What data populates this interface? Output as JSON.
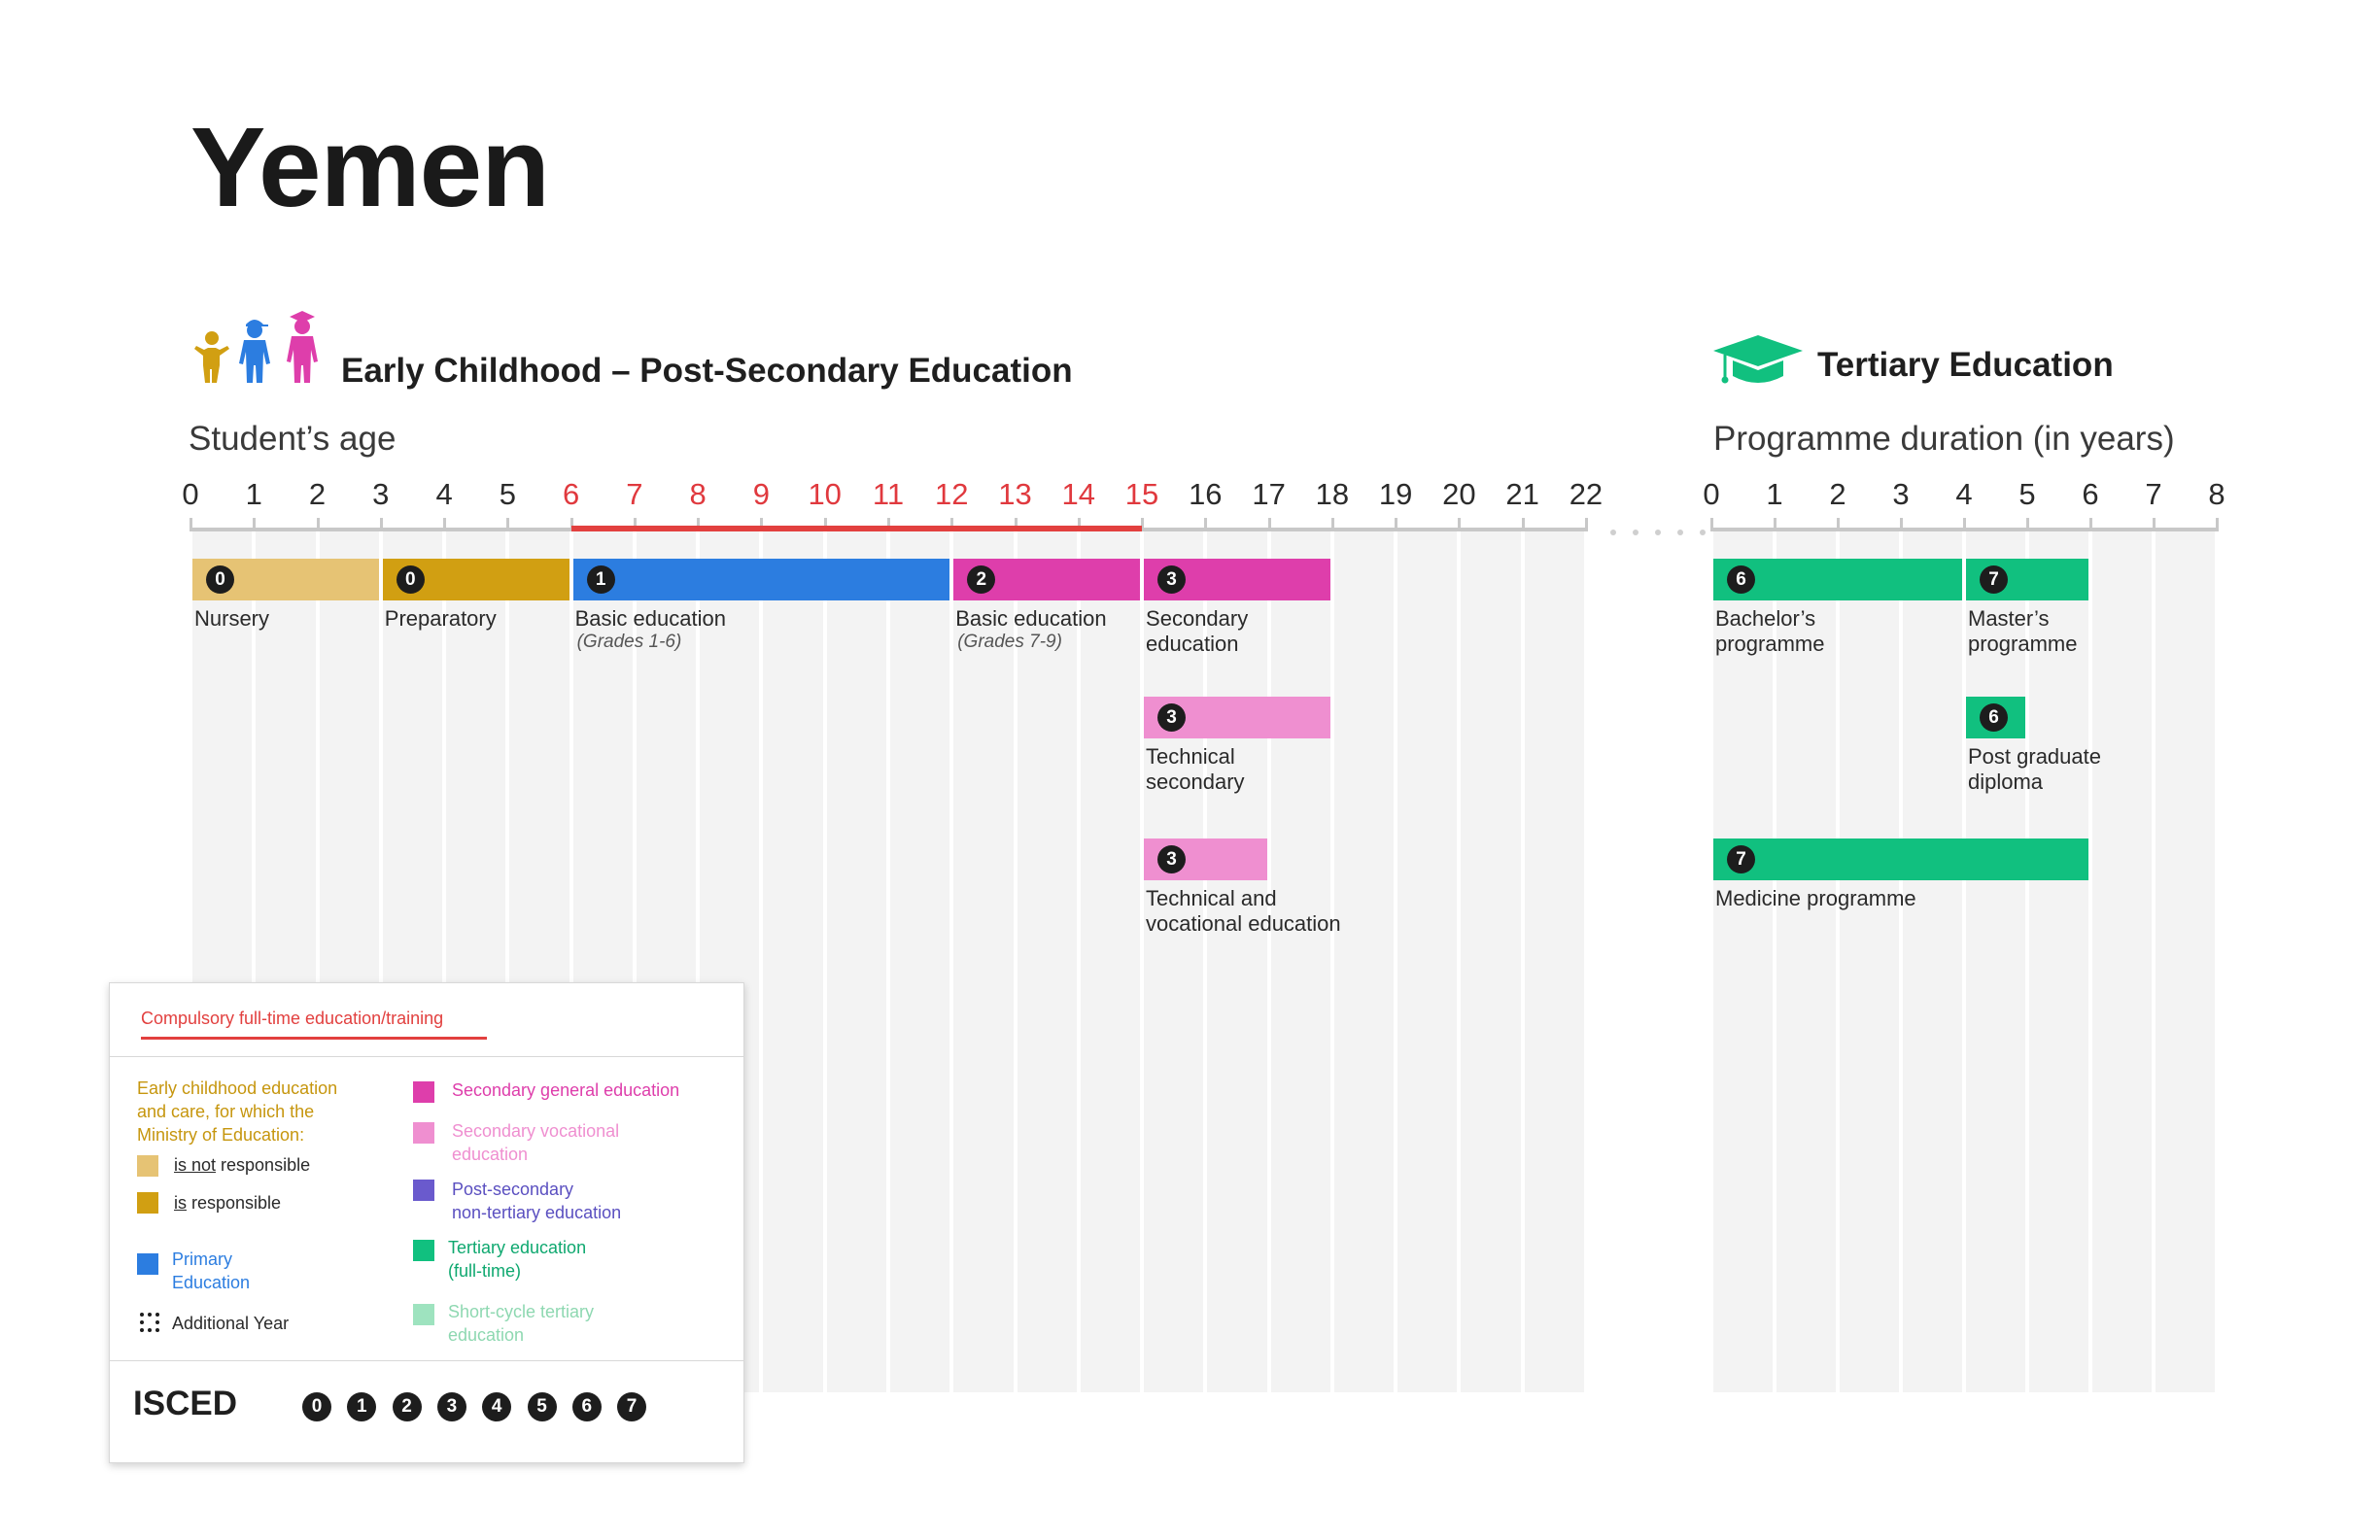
{
  "title": "Yemen",
  "sections": {
    "early": "Early Childhood – Post-Secondary Education",
    "tertiary": "Tertiary Education"
  },
  "axis_titles": {
    "age": "Student’s age",
    "duration": "Programme duration (in years)"
  },
  "age_ticks": [
    "0",
    "1",
    "2",
    "3",
    "4",
    "5",
    "6",
    "7",
    "8",
    "9",
    "10",
    "11",
    "12",
    "13",
    "14",
    "15",
    "16",
    "17",
    "18",
    "19",
    "20",
    "21",
    "22"
  ],
  "duration_ticks": [
    "0",
    "1",
    "2",
    "3",
    "4",
    "5",
    "6",
    "7",
    "8"
  ],
  "compulsory_range": [
    6,
    15
  ],
  "colors": {
    "ecec_not_responsible": "#e6c374",
    "ecec_responsible": "#d19f12",
    "primary": "#2c7de0",
    "secondary_general": "#de3eab",
    "secondary_vocational": "#ef8fd0",
    "post_secondary": "#6a5acd",
    "tertiary": "#11c07f",
    "short_cycle": "#9ee3bf",
    "compulsory": "#e2403f"
  },
  "programmes": [
    {
      "panel": "age",
      "start": 0,
      "end": 3,
      "row": 0,
      "isced": "0",
      "color": "ecec_not_responsible",
      "label": "Nursery",
      "note": ""
    },
    {
      "panel": "age",
      "start": 3,
      "end": 6,
      "row": 0,
      "isced": "0",
      "color": "ecec_responsible",
      "label": "Preparatory",
      "note": ""
    },
    {
      "panel": "age",
      "start": 6,
      "end": 12,
      "row": 0,
      "isced": "1",
      "color": "primary",
      "label": "Basic education",
      "note": "(Grades 1-6)"
    },
    {
      "panel": "age",
      "start": 12,
      "end": 15,
      "row": 0,
      "isced": "2",
      "color": "secondary_general",
      "label": "Basic education",
      "note": "(Grades 7-9)"
    },
    {
      "panel": "age",
      "start": 15,
      "end": 18,
      "row": 0,
      "isced": "3",
      "color": "secondary_general",
      "label": "Secondary\neducation",
      "note": "",
      "additional_year_left": true
    },
    {
      "panel": "age",
      "start": 15,
      "end": 18,
      "row": 1,
      "isced": "3",
      "color": "secondary_vocational",
      "label": "Technical\nsecondary",
      "note": ""
    },
    {
      "panel": "age",
      "start": 15,
      "end": 17,
      "row": 2,
      "isced": "3",
      "color": "secondary_vocational",
      "label": "Technical and\nvocational education",
      "note": ""
    },
    {
      "panel": "duration",
      "start": 0,
      "end": 4,
      "row": 0,
      "isced": "6",
      "color": "tertiary",
      "label": "Bachelor’s\nprogramme",
      "note": ""
    },
    {
      "panel": "duration",
      "start": 4,
      "end": 6,
      "row": 0,
      "isced": "7",
      "color": "tertiary",
      "label": "Master’s\nprogramme",
      "note": "",
      "additional_year_left": true
    },
    {
      "panel": "duration",
      "start": 4,
      "end": 5,
      "row": 1,
      "isced": "6",
      "color": "tertiary",
      "label": "Post graduate\ndiploma",
      "note": ""
    },
    {
      "panel": "duration",
      "start": 0,
      "end": 6,
      "row": 2,
      "isced": "7",
      "color": "tertiary",
      "label": "Medicine programme",
      "note": ""
    }
  ],
  "legend": {
    "compulsory": "Compulsory full-time education/training",
    "ecec_heading": "Early childhood education\nand care, for which the\nMinistry of Education:",
    "not_responsible_prefix": "is not",
    "not_responsible_suffix": " responsible",
    "responsible_prefix": "is",
    "responsible_suffix": " responsible",
    "primary": "Primary\nEducation",
    "additional_year": "Additional Year",
    "secondary_general": "Secondary general education",
    "secondary_vocational": "Secondary vocational\neducation",
    "post_secondary": "Post-secondary\nnon-tertiary education",
    "tertiary": "Tertiary education\n(full-time)",
    "short_cycle": "Short-cycle tertiary\neducation",
    "isced_label": "ISCED",
    "isced_levels": [
      "0",
      "1",
      "2",
      "3",
      "4",
      "5",
      "6",
      "7"
    ]
  }
}
